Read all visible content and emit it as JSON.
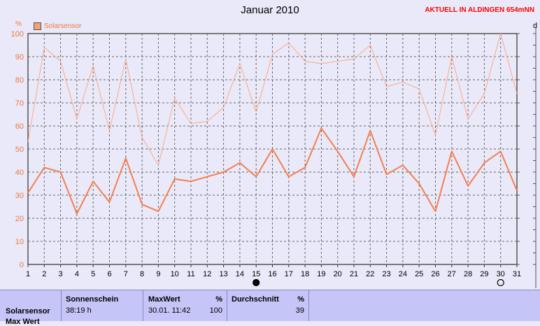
{
  "header": {
    "title": "Januar 2010",
    "station": "AKTUELL IN ALDINGEN 654mNN",
    "unit_left": "%",
    "unit_right": "d"
  },
  "legend": {
    "label": "Solarsensor",
    "color": "#f6a07a"
  },
  "chart_data": {
    "type": "line",
    "title": "Januar 2010",
    "xlabel": "",
    "ylabel": "%",
    "x": [
      1,
      2,
      3,
      4,
      5,
      6,
      7,
      8,
      9,
      10,
      11,
      12,
      13,
      14,
      15,
      16,
      17,
      18,
      19,
      20,
      21,
      22,
      23,
      24,
      25,
      26,
      27,
      28,
      29,
      30,
      31
    ],
    "xlim": [
      1,
      31
    ],
    "ylim": [
      0,
      100
    ],
    "yticks": [
      0,
      10,
      20,
      30,
      40,
      50,
      60,
      70,
      80,
      90,
      100
    ],
    "grid": true,
    "legend_position": "top-left",
    "series": [
      {
        "name": "Solarsensor",
        "role": "max",
        "color": "#fba987",
        "values": [
          53,
          94,
          88,
          63,
          86,
          58,
          89,
          55,
          43,
          72,
          61,
          62,
          68,
          87,
          66,
          91,
          96,
          88,
          87,
          88,
          89,
          95,
          77,
          79,
          76,
          56,
          90,
          63,
          74,
          100,
          74
        ]
      },
      {
        "name": "Solarsensor",
        "role": "mean",
        "color": "#f48050",
        "values": [
          31,
          42,
          40,
          22,
          36,
          27,
          46,
          26,
          23,
          37,
          36,
          38,
          40,
          44,
          38,
          50,
          38,
          42,
          59,
          49,
          38,
          58,
          39,
          43,
          35,
          23,
          49,
          34,
          44,
          49,
          32
        ]
      }
    ],
    "markers": [
      {
        "type": "new-moon",
        "x": 15
      },
      {
        "type": "full-moon",
        "x": 30
      }
    ]
  },
  "table": {
    "row_label": "Solarsensor",
    "row_label2": "Max Wert",
    "sonnenschein": {
      "header": "Sonnenschein",
      "value": "38:19 h"
    },
    "maxwert": {
      "header": "MaxWert",
      "unit": "%",
      "date": "30.01.  11:42",
      "value": "100"
    },
    "durchschnitt": {
      "header": "Durchschnitt",
      "unit": "%",
      "value": "39"
    }
  }
}
